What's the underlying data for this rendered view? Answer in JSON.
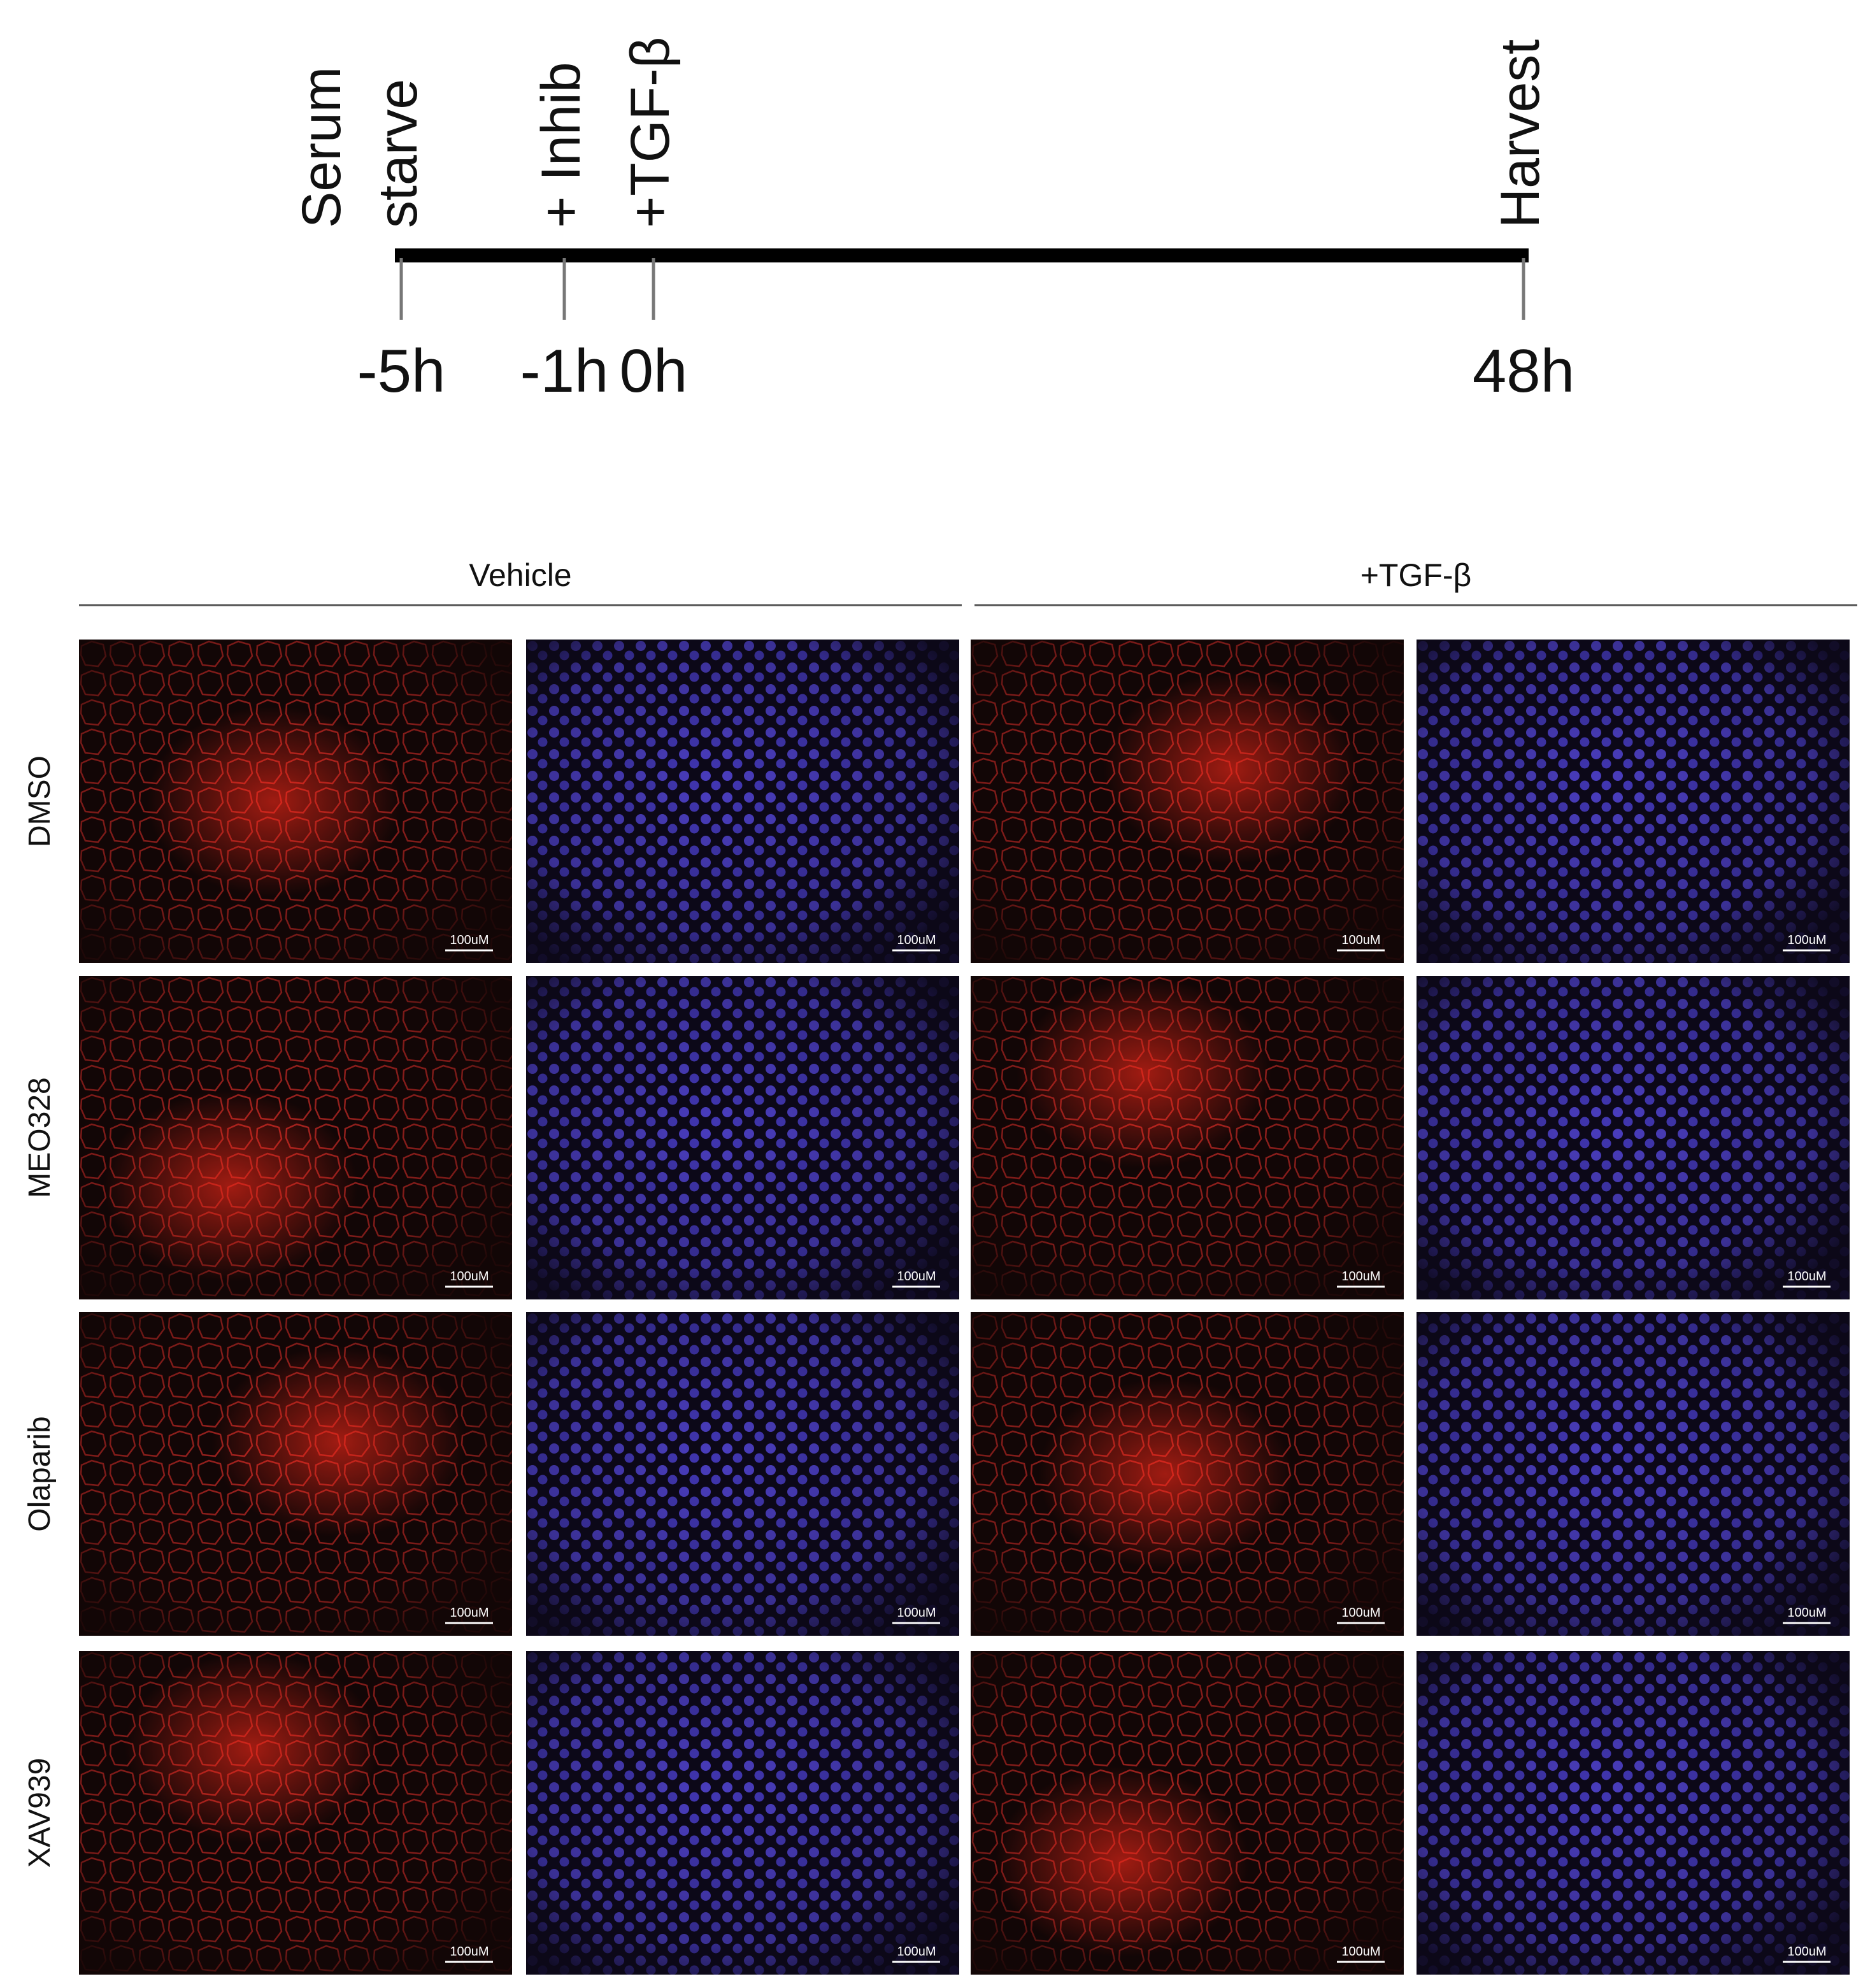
{
  "timeline": {
    "events": [
      {
        "label": [
          "Serum",
          "starve"
        ],
        "time": "-5h"
      },
      {
        "label": [
          "+ Inhib"
        ],
        "time": "-1h"
      },
      {
        "label": [
          "+TGF-β"
        ],
        "time": "0h"
      },
      {
        "label": [
          "Harvest"
        ],
        "time": "48h"
      }
    ]
  },
  "groups": [
    "Vehicle",
    "+TGF-β"
  ],
  "rows": [
    "DMSO",
    "MEO328",
    "Olaparib",
    "XAV939"
  ],
  "scale_bar": "100uM"
}
